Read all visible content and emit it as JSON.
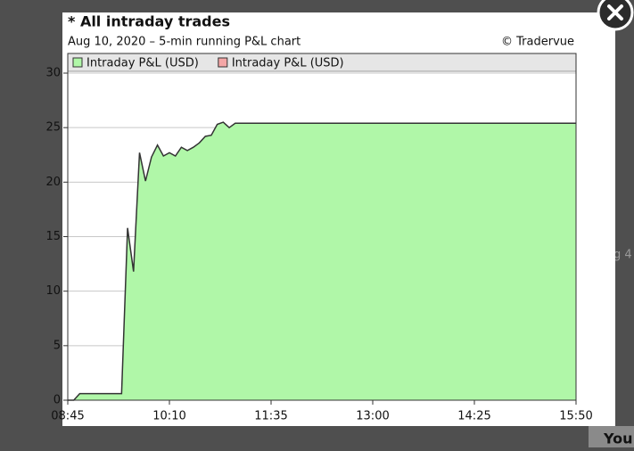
{
  "chart_data": {
    "type": "area",
    "title": "* All intraday trades",
    "subtitle": "Aug 10, 2020 – 5-min running P&L chart",
    "credit": "© Tradervue",
    "legend_entries": [
      {
        "name": "Intraday P&L (USD)",
        "color": "#b0f7a8"
      },
      {
        "name": "Intraday P&L (USD)",
        "color": "#f4a6a6"
      }
    ],
    "series": [
      {
        "name": "Intraday P&L (USD)",
        "color": "#b0f7a8",
        "line_color": "#333333",
        "x": [
          "08:45",
          "08:50",
          "08:55",
          "09:00",
          "09:05",
          "09:10",
          "09:15",
          "09:20",
          "09:25",
          "09:30",
          "09:35",
          "09:40",
          "09:45",
          "09:50",
          "09:55",
          "10:00",
          "10:05",
          "10:10",
          "10:15",
          "10:20",
          "10:25",
          "10:30",
          "10:35",
          "10:40",
          "10:45",
          "10:50",
          "10:55",
          "11:00",
          "11:05",
          "15:50"
        ],
        "values": [
          0,
          0,
          0.6,
          0.6,
          0.6,
          0.6,
          0.6,
          0.6,
          0.6,
          0.6,
          15.8,
          11.8,
          22.7,
          20.1,
          22.3,
          23.4,
          22.4,
          22.7,
          22.4,
          23.2,
          22.9,
          23.2,
          23.6,
          24.2,
          24.3,
          25.3,
          25.5,
          25.0,
          25.4,
          25.4
        ]
      }
    ],
    "xlim": [
      "08:45",
      "15:50"
    ],
    "xticks": [
      "08:45",
      "10:10",
      "11:35",
      "13:00",
      "14:25",
      "15:50"
    ],
    "ylim": [
      0,
      31.8
    ],
    "yticks": [
      0,
      5,
      10,
      15,
      20,
      25,
      30
    ],
    "grid": true
  },
  "background_texts": [
    "g 4",
    "You"
  ]
}
